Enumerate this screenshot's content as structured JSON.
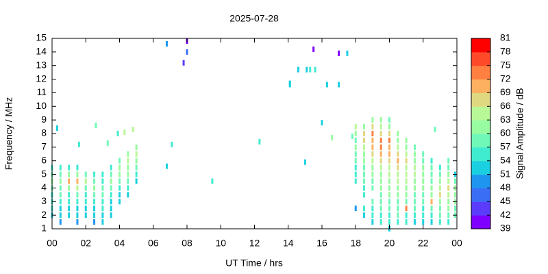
{
  "chart_data": {
    "type": "heatmap",
    "title": "2025-07-28",
    "x_label": "UT Time / hrs",
    "y_label": "Frequency / MHz",
    "colorbar_label": "Signal Amplitude / dB",
    "xlim": [
      0,
      24
    ],
    "xticks": [
      {
        "value": 0,
        "label": "00"
      },
      {
        "value": 2,
        "label": "02"
      },
      {
        "value": 4,
        "label": "04"
      },
      {
        "value": 6,
        "label": "06"
      },
      {
        "value": 8,
        "label": "08"
      },
      10,
      12,
      14,
      16,
      18,
      20,
      22,
      {
        "value": 24,
        "label": "00"
      }
    ],
    "ylim": [
      1,
      15
    ],
    "yticks": [
      1,
      2,
      3,
      4,
      5,
      6,
      7,
      8,
      9,
      10,
      11,
      12,
      13,
      14,
      15
    ],
    "clim": [
      39,
      81
    ],
    "cticks": [
      39,
      42,
      45,
      48,
      51,
      54,
      57,
      60,
      63,
      66,
      69,
      72,
      75,
      78,
      81
    ],
    "colors": [
      "#8000ff",
      "#5a3cfa",
      "#3a6ef5",
      "#1e96f0",
      "#1ad0e0",
      "#40ecd0",
      "#70f8b8",
      "#98fca0",
      "#b8f896",
      "#e0d880",
      "#fcb060",
      "#ff8040",
      "#ff4a2a",
      "#ff0000"
    ],
    "columns": [
      {
        "x": 0,
        "y": [
          2,
          2.5,
          3,
          3.5,
          4,
          4.5,
          5,
          5.5
        ],
        "values": [
          52,
          54,
          55,
          56,
          58,
          60,
          57,
          54
        ]
      },
      {
        "x": 0.5,
        "y": [
          1.5,
          2,
          2.5,
          3,
          3.5,
          4,
          4.5,
          5,
          5.5
        ],
        "values": [
          50,
          52,
          53,
          55,
          57,
          59,
          61,
          58,
          55
        ]
      },
      {
        "x": 1,
        "y": [
          2,
          2.5,
          3,
          3.5,
          4,
          4.5,
          5,
          5.5
        ],
        "values": [
          51,
          53,
          54,
          56,
          60,
          70,
          62,
          56
        ]
      },
      {
        "x": 1.5,
        "y": [
          1.5,
          2,
          2.5,
          3,
          3.5,
          4,
          4.5,
          5,
          5.5
        ],
        "values": [
          50,
          51,
          53,
          55,
          58,
          64,
          71,
          60,
          54
        ]
      },
      {
        "x": 2,
        "y": [
          2,
          2.5,
          3,
          3.5,
          4,
          4.5,
          5
        ],
        "values": [
          51,
          52,
          54,
          56,
          59,
          63,
          57
        ]
      },
      {
        "x": 2.5,
        "y": [
          1.5,
          2,
          2.5,
          3,
          3.5,
          4,
          4.5,
          5
        ],
        "values": [
          50,
          52,
          53,
          55,
          57,
          60,
          58,
          55
        ]
      },
      {
        "x": 3,
        "y": [
          1.5,
          2,
          2.5,
          3,
          3.5,
          4,
          4.5,
          5
        ],
        "values": [
          52,
          53,
          54,
          55,
          57,
          58,
          56,
          54
        ]
      },
      {
        "x": 3.5,
        "y": [
          2,
          2.5,
          3,
          3.5,
          4,
          4.5,
          5,
          5.5
        ],
        "values": [
          52,
          51,
          53,
          55,
          57,
          60,
          59,
          55
        ]
      },
      {
        "x": 4,
        "y": [
          3,
          3.5,
          4,
          4.5,
          5,
          5.5,
          6
        ],
        "values": [
          51,
          53,
          55,
          58,
          60,
          62,
          58
        ]
      },
      {
        "x": 4.5,
        "y": [
          3.5,
          4,
          4.5,
          5,
          5.5,
          6,
          6.5
        ],
        "values": [
          52,
          54,
          57,
          60,
          62,
          64,
          60
        ]
      },
      {
        "x": 5,
        "y": [
          4.5,
          5,
          5.5,
          6,
          6.5,
          7
        ],
        "values": [
          53,
          56,
          59,
          62,
          64,
          61
        ]
      },
      {
        "x": 0.3,
        "y": [
          8.4
        ],
        "values": [
          52
        ]
      },
      {
        "x": 1.6,
        "y": [
          7.2
        ],
        "values": [
          55
        ]
      },
      {
        "x": 2.6,
        "y": [
          8.6
        ],
        "values": [
          57
        ]
      },
      {
        "x": 3.3,
        "y": [
          7.3
        ],
        "values": [
          58
        ]
      },
      {
        "x": 3.9,
        "y": [
          8
        ],
        "values": [
          54
        ]
      },
      {
        "x": 4.3,
        "y": [
          8.1
        ],
        "values": [
          64
        ]
      },
      {
        "x": 4.8,
        "y": [
          8.3
        ],
        "values": [
          63
        ]
      },
      {
        "x": 6.8,
        "y": [
          5.6,
          14.6
        ],
        "values": [
          52,
          50
        ]
      },
      {
        "x": 7.1,
        "y": [
          7.2
        ],
        "values": [
          54
        ]
      },
      {
        "x": 7.8,
        "y": [
          13.2
        ],
        "values": [
          42
        ]
      },
      {
        "x": 8,
        "y": [
          14,
          14.8
        ],
        "values": [
          46,
          40
        ]
      },
      {
        "x": 9.5,
        "y": [
          4.5
        ],
        "values": [
          55
        ]
      },
      {
        "x": 12.3,
        "y": [
          7.4
        ],
        "values": [
          55
        ]
      },
      {
        "x": 14.1,
        "y": [
          11.6,
          11.7
        ],
        "values": [
          52,
          53
        ]
      },
      {
        "x": 14.6,
        "y": [
          12.7
        ],
        "values": [
          51
        ]
      },
      {
        "x": 15,
        "y": [
          5.9
        ],
        "values": [
          51
        ]
      },
      {
        "x": 15.1,
        "y": [
          12.7
        ],
        "values": [
          53
        ]
      },
      {
        "x": 15.3,
        "y": [
          12.7
        ],
        "values": [
          55
        ]
      },
      {
        "x": 15.5,
        "y": [
          14.2
        ],
        "values": [
          41
        ]
      },
      {
        "x": 15.6,
        "y": [
          12.7
        ],
        "values": [
          55
        ]
      },
      {
        "x": 16,
        "y": [
          8.8
        ],
        "values": [
          52
        ]
      },
      {
        "x": 16.3,
        "y": [
          11.6
        ],
        "values": [
          51
        ]
      },
      {
        "x": 16.6,
        "y": [
          7.7
        ],
        "values": [
          60
        ]
      },
      {
        "x": 17,
        "y": [
          11.6,
          13.9
        ],
        "values": [
          51,
          41
        ]
      },
      {
        "x": 17.5,
        "y": [
          13.9
        ],
        "values": [
          52
        ]
      },
      {
        "x": 17.8,
        "y": [
          7.8
        ],
        "values": [
          57
        ]
      },
      {
        "x": 22.7,
        "y": [
          8.3
        ],
        "values": [
          58
        ]
      },
      {
        "x": 18,
        "y": [
          2.5,
          4.5,
          5,
          5.5,
          6,
          6.5,
          7,
          7.5,
          8,
          8.5
        ],
        "values": [
          50,
          54,
          55,
          56,
          57,
          58,
          60,
          59,
          62,
          64
        ]
      },
      {
        "x": 18.5,
        "y": [
          2,
          2.5,
          3.5,
          4,
          4.5,
          5,
          5.5,
          6,
          6.5,
          7,
          7.5,
          8,
          8.5
        ],
        "values": [
          52,
          54,
          55,
          56,
          57,
          58,
          59,
          60,
          62,
          64,
          66,
          68,
          61
        ]
      },
      {
        "x": 19,
        "y": [
          1.5,
          2,
          2.5,
          3,
          4,
          4.5,
          5,
          5.5,
          6,
          6.5,
          7,
          7.5,
          8,
          8.5,
          9
        ],
        "values": [
          53,
          55,
          56,
          57,
          58,
          59,
          60,
          61,
          63,
          66,
          69,
          71,
          73,
          66,
          62
        ]
      },
      {
        "x": 19.5,
        "y": [
          1.5,
          2,
          2.5,
          3,
          3.5,
          4,
          4.5,
          5,
          5.5,
          6,
          6.5,
          7,
          7.5,
          8,
          8.5,
          9
        ],
        "values": [
          54,
          55,
          57,
          58,
          59,
          60,
          61,
          62,
          64,
          67,
          70,
          74,
          72,
          68,
          63,
          60
        ]
      },
      {
        "x": 20,
        "y": [
          1,
          1.5,
          2,
          2.5,
          3,
          3.5,
          4,
          4.5,
          5,
          5.5,
          6,
          6.5,
          7,
          7.5,
          8,
          8.5,
          9
        ],
        "values": [
          52,
          54,
          56,
          57,
          58,
          60,
          61,
          62,
          63,
          65,
          68,
          71,
          70,
          73,
          66,
          62,
          59
        ]
      },
      {
        "x": 20.5,
        "y": [
          1.5,
          2,
          2.5,
          3,
          3.5,
          4,
          4.5,
          5,
          5.5,
          6,
          6.5,
          7,
          7.5,
          8
        ],
        "values": [
          55,
          57,
          58,
          59,
          61,
          62,
          63,
          64,
          66,
          69,
          67,
          65,
          62,
          60
        ]
      },
      {
        "x": 21,
        "y": [
          1.5,
          2,
          2.5,
          3,
          3.5,
          4,
          4.5,
          5,
          5.5,
          6,
          6.5,
          7,
          7.5
        ],
        "values": [
          54,
          56,
          74,
          58,
          60,
          61,
          63,
          64,
          65,
          67,
          64,
          62,
          60
        ]
      },
      {
        "x": 21.5,
        "y": [
          1.5,
          2,
          2.5,
          3,
          3.5,
          4,
          4.5,
          5,
          5.5,
          6,
          6.5,
          7
        ],
        "values": [
          53,
          55,
          57,
          58,
          59,
          61,
          62,
          63,
          64,
          62,
          60,
          58
        ]
      },
      {
        "x": 22,
        "y": [
          1.5,
          2,
          2.5,
          3,
          3.5,
          4,
          4.5,
          5,
          5.5,
          6,
          6.5
        ],
        "values": [
          52,
          54,
          56,
          57,
          59,
          60,
          62,
          61,
          60,
          59,
          57
        ]
      },
      {
        "x": 22.5,
        "y": [
          1.5,
          2,
          2.5,
          3,
          3.5,
          4,
          4.5,
          5,
          5.5,
          6
        ],
        "values": [
          53,
          55,
          57,
          70,
          60,
          61,
          59,
          58,
          57,
          56
        ]
      },
      {
        "x": 23,
        "y": [
          1.5,
          2,
          2.5,
          3,
          3.5,
          4,
          4.5,
          5,
          5.5
        ],
        "values": [
          55,
          57,
          58,
          60,
          66,
          63,
          60,
          58,
          56
        ]
      },
      {
        "x": 23.5,
        "y": [
          1.5,
          2,
          2.5,
          3,
          3.5,
          4,
          4.5,
          5,
          5.5,
          6
        ],
        "values": [
          56,
          58,
          60,
          62,
          64,
          66,
          63,
          60,
          58,
          57
        ]
      },
      {
        "x": 23.9,
        "y": [
          2,
          2.5,
          3,
          3.5,
          4,
          4.5,
          5
        ],
        "values": [
          57,
          59,
          61,
          62,
          60,
          58,
          53
        ]
      }
    ]
  }
}
